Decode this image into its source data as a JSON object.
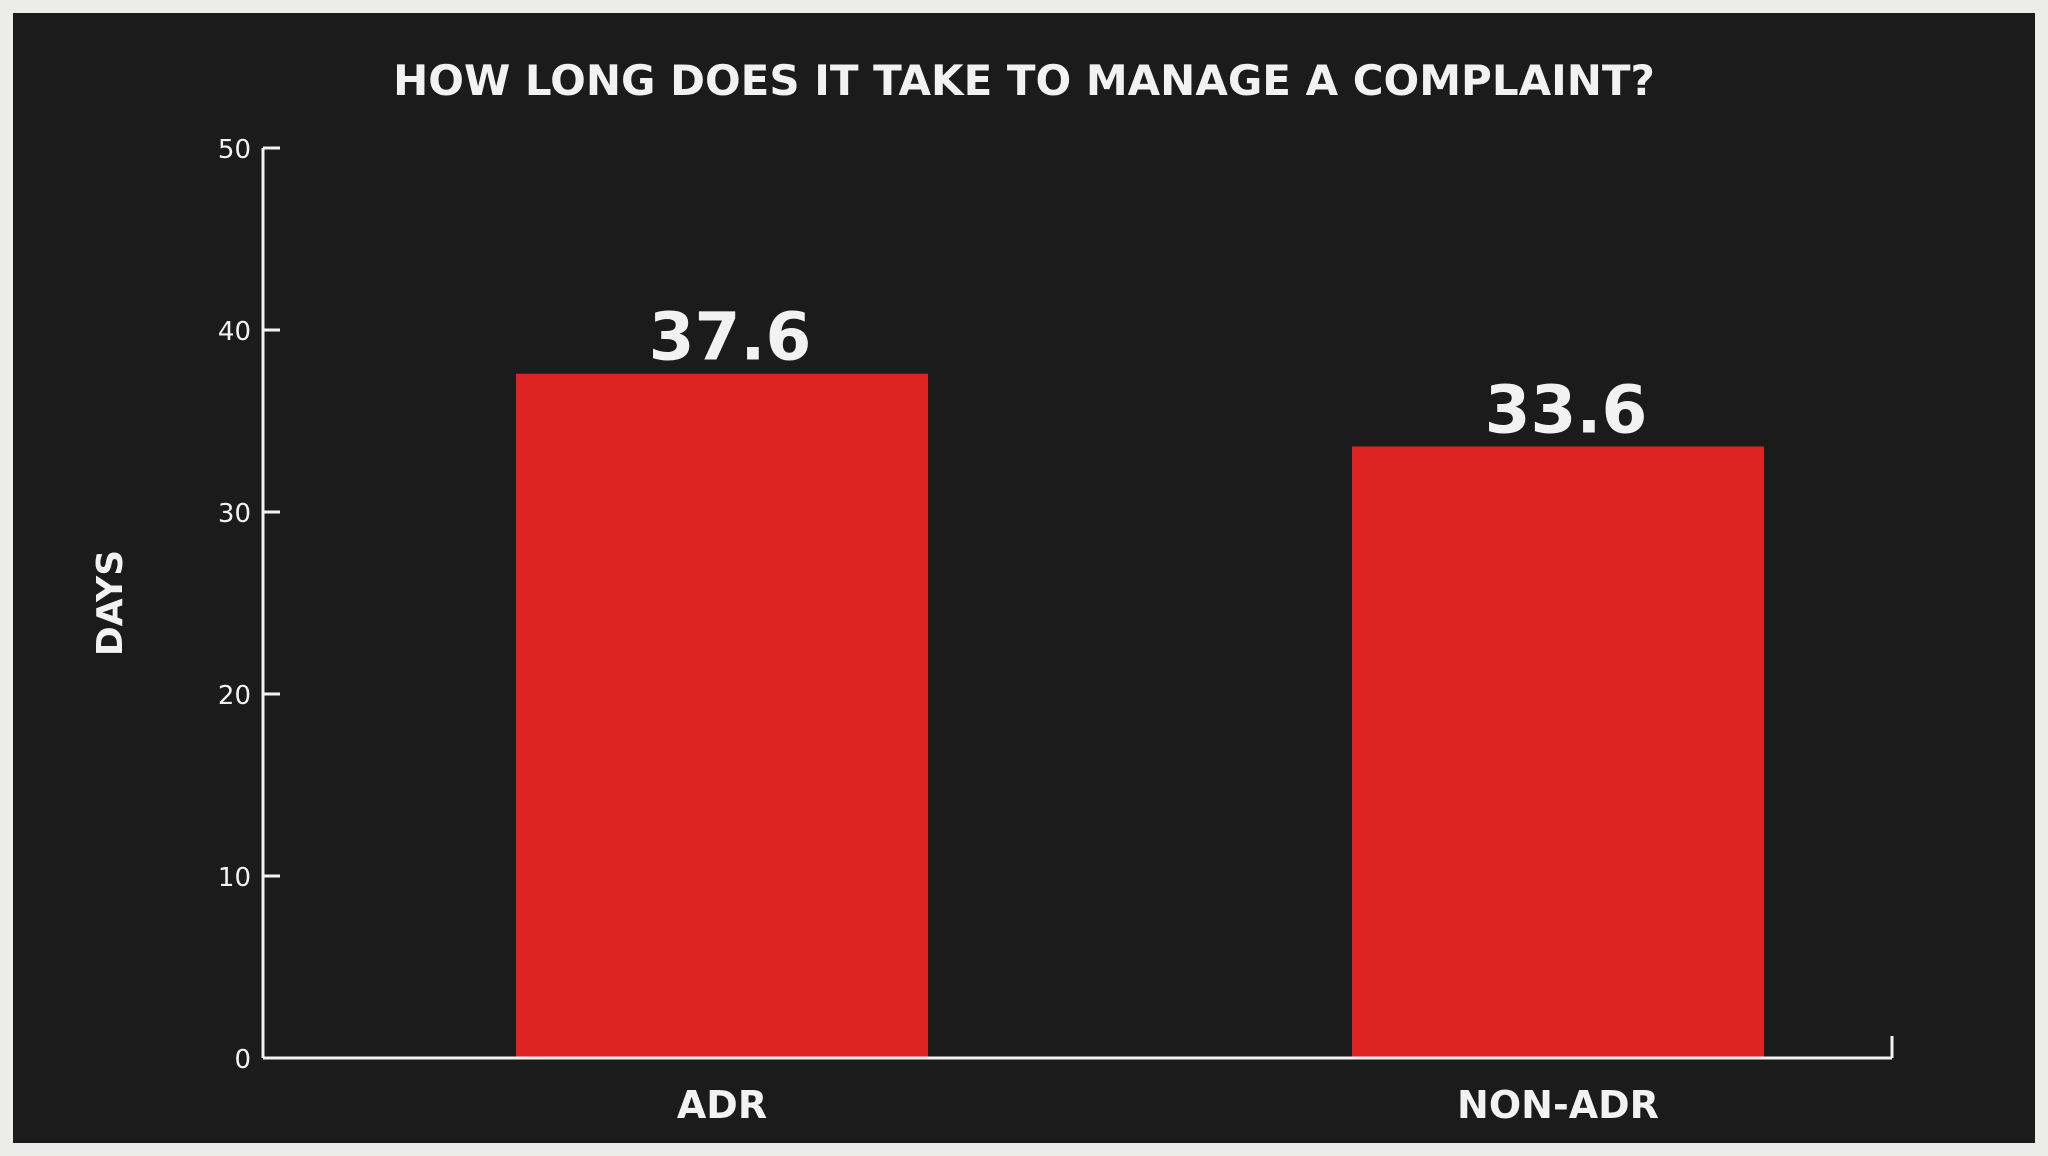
{
  "chart_data": {
    "type": "bar",
    "title": "HOW LONG DOES IT TAKE TO MANAGE A COMPLAINT?",
    "xlabel": "",
    "ylabel": "DAYS",
    "categories": [
      "ADR",
      "NON-ADR"
    ],
    "values": [
      37.6,
      33.6
    ],
    "value_labels": [
      "37.6",
      "33.6"
    ],
    "ylim": [
      0,
      50
    ],
    "yticks": [
      0,
      10,
      20,
      30,
      40,
      50
    ],
    "grid": false,
    "legend": "none",
    "colors": {
      "background": "#1b1b1b",
      "frame": "#ececea",
      "bar": "#dd2222",
      "text": "#f2f2f2"
    }
  }
}
